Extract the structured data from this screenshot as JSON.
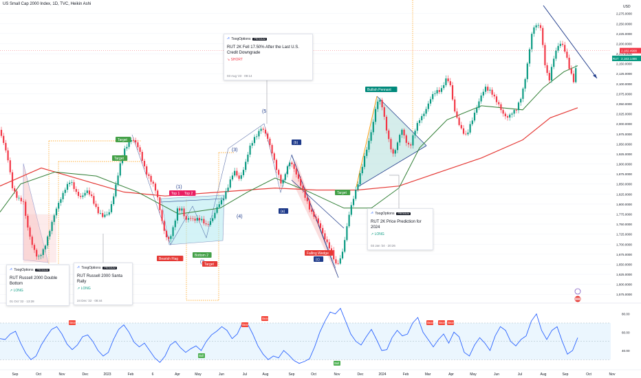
{
  "header": {
    "title": "US Small Cap 2000 Index, 1D, TVC, Heikin Ashi"
  },
  "chart_data": [
    {
      "type": "candlestick",
      "currency": "USD",
      "ylim": [
        1560,
        2295
      ],
      "y_ticks": [
        "2,275.0000",
        "2,250.0000",
        "2,225.0000",
        "2,200.0000",
        "2,175.0000",
        "2,150.0000",
        "2,125.0000",
        "2,100.0000",
        "2,075.0000",
        "2,050.0000",
        "2,025.0000",
        "2,000.0000",
        "1,975.0000",
        "1,950.0000",
        "1,925.0000",
        "1,900.0000",
        "1,875.0000",
        "1,850.0000",
        "1,825.0000",
        "1,800.0000",
        "1,775.0000",
        "1,750.0000",
        "1,725.0000",
        "1,700.0000",
        "1,675.0000",
        "1,650.0000",
        "1,625.0000",
        "1,600.0000",
        "1,575.0000"
      ],
      "x_ticks": [
        "Sep",
        "Oct",
        "Nov",
        "Dec",
        "2023",
        "Feb",
        "6",
        "Apr",
        "May",
        "Jun",
        "Jul",
        "Aug",
        "Sep",
        "Oct",
        "Nov",
        "Dec",
        "2024",
        "Feb",
        "Mar",
        "Apr",
        "May",
        "Jun",
        "Jul",
        "Aug",
        "Sep",
        "Oct",
        "Nov"
      ],
      "last_price": {
        "label": "2,182.4908",
        "color": "#f23645"
      },
      "symbol_price": {
        "symbol": "RUT",
        "label": "2,163.1466",
        "color": "#089981"
      },
      "close_path": [
        [
          0,
          1985
        ],
        [
          6,
          1945
        ],
        [
          12,
          1905
        ],
        [
          18,
          1845
        ],
        [
          26,
          1815
        ],
        [
          34,
          1800
        ],
        [
          40,
          1745
        ],
        [
          48,
          1695
        ],
        [
          55,
          1660
        ],
        [
          62,
          1680
        ],
        [
          70,
          1725
        ],
        [
          78,
          1765
        ],
        [
          86,
          1805
        ],
        [
          94,
          1840
        ],
        [
          102,
          1855
        ],
        [
          110,
          1830
        ],
        [
          118,
          1820
        ],
        [
          126,
          1830
        ],
        [
          134,
          1815
        ],
        [
          142,
          1785
        ],
        [
          150,
          1765
        ],
        [
          158,
          1775
        ],
        [
          166,
          1830
        ],
        [
          174,
          1890
        ],
        [
          182,
          1940
        ],
        [
          190,
          1965
        ],
        [
          196,
          1955
        ],
        [
          204,
          1925
        ],
        [
          212,
          1885
        ],
        [
          220,
          1855
        ],
        [
          228,
          1825
        ],
        [
          234,
          1775
        ],
        [
          240,
          1725
        ],
        [
          246,
          1705
        ],
        [
          252,
          1740
        ],
        [
          258,
          1790
        ],
        [
          264,
          1790
        ],
        [
          270,
          1755
        ],
        [
          276,
          1765
        ],
        [
          282,
          1765
        ],
        [
          288,
          1765
        ],
        [
          294,
          1755
        ],
        [
          300,
          1745
        ],
        [
          308,
          1765
        ],
        [
          316,
          1790
        ],
        [
          324,
          1810
        ],
        [
          332,
          1850
        ],
        [
          340,
          1880
        ],
        [
          348,
          1860
        ],
        [
          356,
          1900
        ],
        [
          362,
          1935
        ],
        [
          368,
          1955
        ],
        [
          374,
          1975
        ],
        [
          380,
          1995
        ],
        [
          386,
          1975
        ],
        [
          392,
          1945
        ],
        [
          398,
          1915
        ],
        [
          404,
          1880
        ],
        [
          410,
          1845
        ],
        [
          416,
          1880
        ],
        [
          422,
          1910
        ],
        [
          428,
          1890
        ],
        [
          434,
          1860
        ],
        [
          440,
          1830
        ],
        [
          446,
          1810
        ],
        [
          452,
          1785
        ],
        [
          458,
          1765
        ],
        [
          464,
          1745
        ],
        [
          470,
          1725
        ],
        [
          476,
          1705
        ],
        [
          482,
          1680
        ],
        [
          488,
          1645
        ],
        [
          494,
          1660
        ],
        [
          500,
          1700
        ],
        [
          506,
          1760
        ],
        [
          512,
          1800
        ],
        [
          518,
          1840
        ],
        [
          524,
          1880
        ],
        [
          530,
          1915
        ],
        [
          536,
          1950
        ],
        [
          542,
          2000
        ],
        [
          548,
          2060
        ],
        [
          554,
          2055
        ],
        [
          560,
          2000
        ],
        [
          566,
          1955
        ],
        [
          572,
          1925
        ],
        [
          578,
          1950
        ],
        [
          584,
          1985
        ],
        [
          590,
          1960
        ],
        [
          596,
          1945
        ],
        [
          602,
          1975
        ],
        [
          610,
          2010
        ],
        [
          618,
          2035
        ],
        [
          626,
          2060
        ],
        [
          634,
          2080
        ],
        [
          642,
          2090
        ],
        [
          648,
          2110
        ],
        [
          654,
          2100
        ],
        [
          660,
          2040
        ],
        [
          666,
          2010
        ],
        [
          672,
          1980
        ],
        [
          678,
          1965
        ],
        [
          684,
          2000
        ],
        [
          690,
          2030
        ],
        [
          698,
          2060
        ],
        [
          706,
          2090
        ],
        [
          714,
          2085
        ],
        [
          720,
          2060
        ],
        [
          726,
          2040
        ],
        [
          732,
          2025
        ],
        [
          738,
          2020
        ],
        [
          744,
          2025
        ],
        [
          750,
          2030
        ],
        [
          756,
          2060
        ],
        [
          762,
          2100
        ],
        [
          768,
          2160
        ],
        [
          774,
          2230
        ],
        [
          780,
          2250
        ],
        [
          786,
          2245
        ],
        [
          792,
          2150
        ],
        [
          798,
          2100
        ],
        [
          804,
          2160
        ],
        [
          810,
          2195
        ],
        [
          816,
          2200
        ],
        [
          822,
          2175
        ],
        [
          828,
          2140
        ],
        [
          834,
          2110
        ],
        [
          840,
          2160
        ]
      ],
      "ma_slow": [
        [
          0,
          1845
        ],
        [
          60,
          1890
        ],
        [
          120,
          1860
        ],
        [
          180,
          1830
        ],
        [
          240,
          1820
        ],
        [
          320,
          1830
        ],
        [
          400,
          1840
        ],
        [
          460,
          1835
        ],
        [
          520,
          1835
        ],
        [
          580,
          1845
        ],
        [
          640,
          1880
        ],
        [
          700,
          1915
        ],
        [
          760,
          1960
        ],
        [
          800,
          2015
        ],
        [
          840,
          2040
        ]
      ],
      "ma_fast": [
        [
          0,
          1780
        ],
        [
          30,
          1850
        ],
        [
          80,
          1880
        ],
        [
          140,
          1870
        ],
        [
          200,
          1830
        ],
        [
          260,
          1775
        ],
        [
          320,
          1790
        ],
        [
          360,
          1830
        ],
        [
          400,
          1865
        ],
        [
          450,
          1830
        ],
        [
          500,
          1790
        ],
        [
          540,
          1790
        ],
        [
          580,
          1840
        ],
        [
          610,
          1940
        ],
        [
          650,
          2010
        ],
        [
          700,
          2045
        ],
        [
          760,
          2035
        ],
        [
          790,
          2090
        ],
        [
          820,
          2130
        ],
        [
          840,
          2145
        ]
      ],
      "annotations": [
        {
          "text": "Target",
          "color": "#43a047"
        },
        {
          "text": "Target",
          "color": "#43a047"
        },
        {
          "text": "Top 1",
          "color": "#e91e63"
        },
        {
          "text": "Top 2",
          "color": "#e91e63"
        },
        {
          "text": "(1)",
          "color": "#1e3a8a"
        },
        {
          "text": "Bearish Flag",
          "color": "#e53935"
        },
        {
          "text": "Bottom 2",
          "color": "#43a047"
        },
        {
          "text": "(2",
          "color": "#1e3a8a"
        },
        {
          "text": "Target",
          "color": "#e53935"
        },
        {
          "text": "(3)",
          "color": "#1e3a8a"
        },
        {
          "text": "(4)",
          "color": "#1e3a8a"
        },
        {
          "text": "(5",
          "color": "#1e3a8a"
        },
        {
          "text": "(b)",
          "color": "#1e3a8a"
        },
        {
          "text": "(a)",
          "color": "#1e3a8a"
        },
        {
          "text": "Falling Wedge",
          "color": "#e53935"
        },
        {
          "text": "(c)",
          "color": "#1e3a8a"
        },
        {
          "text": "Target",
          "color": "#43a047"
        },
        {
          "text": "Bullish Pennant",
          "color": "#00897b"
        }
      ]
    },
    {
      "type": "line",
      "name": "RSI",
      "ylim": [
        22,
        88
      ],
      "y_ticks": [
        "80.00",
        "60.00",
        "40.00"
      ],
      "y": [
        53,
        52,
        58,
        61,
        48,
        37,
        30,
        34,
        46,
        55,
        63,
        66,
        58,
        47,
        41,
        46,
        55,
        57,
        50,
        40,
        34,
        38,
        52,
        63,
        68,
        60,
        49,
        44,
        48,
        40,
        32,
        27,
        34,
        46,
        50,
        43,
        38,
        42,
        45,
        40,
        50,
        57,
        61,
        66,
        62,
        53,
        58,
        70,
        69,
        58,
        45,
        36,
        30,
        34,
        32,
        40,
        35,
        29,
        26,
        28,
        31,
        44,
        60,
        72,
        82,
        80,
        86,
        72,
        58,
        50,
        46,
        55,
        63,
        52,
        40,
        41,
        54,
        62,
        56,
        58,
        70,
        76,
        60,
        52,
        44,
        52,
        58,
        48,
        60,
        55,
        38,
        34,
        46,
        54,
        48,
        40,
        56,
        66,
        62,
        50,
        45,
        52,
        56,
        72,
        80,
        62,
        52,
        62,
        66,
        50,
        36,
        40,
        54
      ],
      "signals": [
        {
          "text": "Bear",
          "color": "#f44336"
        },
        {
          "text": "Bull",
          "color": "#4caf50"
        },
        {
          "text": "Bear",
          "color": "#f44336"
        },
        {
          "text": "Bear",
          "color": "#f44336"
        },
        {
          "text": "Bull",
          "color": "#4caf50"
        },
        {
          "text": "Bear",
          "color": "#f44336"
        },
        {
          "text": "Bear",
          "color": "#f44336"
        },
        {
          "text": "Bear",
          "color": "#f44336"
        }
      ]
    }
  ],
  "ideas": [
    {
      "title": "RUT 2K Fell 17.50% After the Last U.S. Credit Downgrade",
      "signal": "↘ SHORT",
      "date": "03 Aug '23 · 09:14",
      "brand": "ToogOptions",
      "badge": "PREMIUM"
    },
    {
      "title": "RUT 2K Price Prediction for 2024",
      "signal": "↗ LONG",
      "date": "03 Jan '24 · 20:26",
      "brand": "ToogOptions",
      "badge": "PREMIUM"
    },
    {
      "title": "RUT Russell 2000 Double Bottom",
      "signal": "↗ LONG",
      "date": "01 Oct '22 · 13:28",
      "brand": "ToogOptions",
      "badge": "PREMIUM"
    },
    {
      "title": "RUT Russell 2000 Santa Rally",
      "signal": "↗ LONG",
      "date": "24 Dec '22 · 08:44",
      "brand": "ToogOptions",
      "badge": "PREMIUM"
    }
  ]
}
